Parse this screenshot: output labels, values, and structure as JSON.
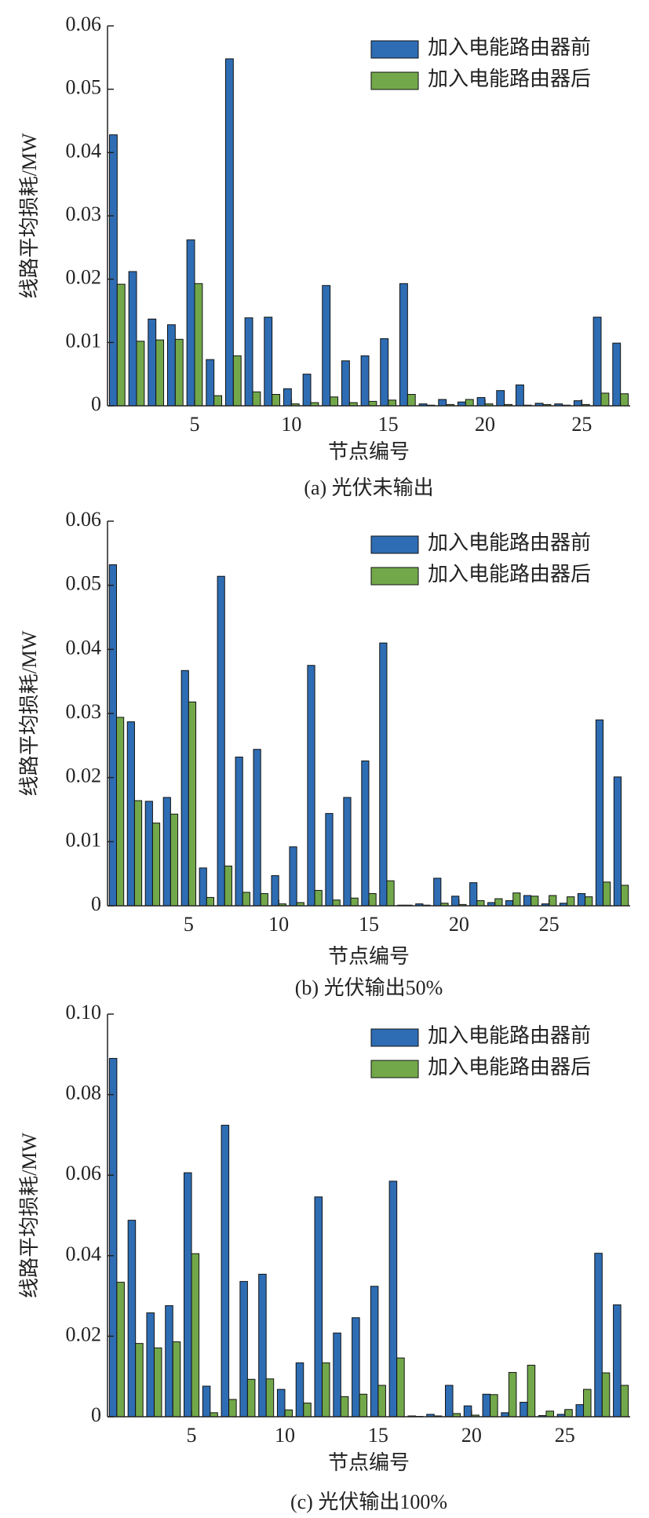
{
  "chart_data": [
    {
      "type": "bar",
      "caption": "(a) 光伏未输出",
      "xlabel": "节点编号",
      "ylabel": "线路平均损耗/MW",
      "legend": "upper right",
      "x": [
        1,
        2,
        3,
        4,
        5,
        6,
        7,
        8,
        9,
        10,
        11,
        12,
        13,
        14,
        15,
        16,
        17,
        18,
        19,
        20,
        21,
        22,
        23,
        24,
        25,
        26,
        27
      ],
      "xlim": [
        0.5,
        27.5
      ],
      "xticks": [
        5,
        10,
        15,
        20,
        25
      ],
      "ylim": [
        0,
        0.06
      ],
      "yticks": [
        0,
        0.01,
        0.02,
        0.03,
        0.04,
        0.05,
        0.06
      ],
      "series": [
        {
          "name": "加入电能路由器前",
          "color": "#2e6db4",
          "values": [
            0.0428,
            0.0212,
            0.0137,
            0.0128,
            0.0262,
            0.0073,
            0.0548,
            0.0139,
            0.014,
            0.0027,
            0.005,
            0.019,
            0.0071,
            0.0079,
            0.0106,
            0.0193,
            0.0003,
            0.001,
            0.0006,
            0.0013,
            0.0024,
            0.0033,
            0.0004,
            0.0003,
            0.0008,
            0.014,
            0.0099
          ]
        },
        {
          "name": "加入电能路由器后",
          "color": "#72a84a",
          "values": [
            0.0192,
            0.0102,
            0.0104,
            0.0105,
            0.0193,
            0.0016,
            0.0079,
            0.0022,
            0.0018,
            0.0003,
            0.0005,
            0.0014,
            0.0005,
            0.0007,
            0.0009,
            0.0018,
            0.0001,
            0.0002,
            0.001,
            0.0003,
            0.0002,
            0.0001,
            0.0002,
            0.0001,
            0.0002,
            0.002,
            0.0019
          ]
        }
      ]
    },
    {
      "type": "bar",
      "caption": "(b) 光伏输出50%",
      "xlabel": "节点编号",
      "ylabel": "线路平均损耗/MW",
      "legend": "upper right",
      "x": [
        1,
        2,
        3,
        4,
        5,
        6,
        7,
        8,
        9,
        10,
        11,
        12,
        13,
        14,
        15,
        16,
        17,
        18,
        19,
        20,
        21,
        22,
        23,
        24,
        25,
        26,
        27,
        28,
        29
      ],
      "xlim": [
        0.5,
        29.5
      ],
      "xticks": [
        5,
        10,
        15,
        20,
        25
      ],
      "ylim": [
        0,
        0.06
      ],
      "yticks": [
        0,
        0.01,
        0.02,
        0.03,
        0.04,
        0.05,
        0.06
      ],
      "series": [
        {
          "name": "加入电能路由器前",
          "color": "#2e6db4",
          "values": [
            0.0532,
            0.0287,
            0.0163,
            0.0169,
            0.0367,
            0.0059,
            0.0514,
            0.0232,
            0.0244,
            0.0047,
            0.0092,
            0.0375,
            0.0144,
            0.0169,
            0.0226,
            0.041,
            0.0001,
            0.0003,
            0.0043,
            0.0015,
            0.0036,
            0.0005,
            0.0008,
            0.0016,
            0.0003,
            0.0004,
            0.0019,
            0.029,
            0.0201
          ]
        },
        {
          "name": "加入电能路由器后",
          "color": "#72a84a",
          "values": [
            0.0294,
            0.0164,
            0.0129,
            0.0143,
            0.0318,
            0.0013,
            0.0062,
            0.0021,
            0.0019,
            0.0003,
            0.0005,
            0.0024,
            0.0009,
            0.0012,
            0.0019,
            0.0039,
            0.0001,
            0.0001,
            0.0004,
            0.0002,
            0.0008,
            0.0011,
            0.002,
            0.0015,
            0.0016,
            0.0014,
            0.0014,
            0.0037,
            0.0032
          ]
        }
      ]
    },
    {
      "type": "bar",
      "caption": "(c) 光伏输出100%",
      "xlabel": "节点编号",
      "ylabel": "线路平均损耗/MW",
      "legend": "upper right",
      "x": [
        1,
        2,
        3,
        4,
        5,
        6,
        7,
        8,
        9,
        10,
        11,
        12,
        13,
        14,
        15,
        16,
        17,
        18,
        19,
        20,
        21,
        22,
        23,
        24,
        25,
        26,
        27,
        28
      ],
      "xlim": [
        0.5,
        28.5
      ],
      "xticks": [
        5,
        10,
        15,
        20,
        25
      ],
      "ylim": [
        0,
        0.1
      ],
      "yticks": [
        0,
        0.02,
        0.04,
        0.06,
        0.08,
        {
          "value": 0.1,
          "label": "0.10"
        }
      ],
      "series": [
        {
          "name": "加入电能路由器前",
          "color": "#2e6db4",
          "values": [
            0.089,
            0.0488,
            0.0258,
            0.0276,
            0.0606,
            0.0076,
            0.0724,
            0.0336,
            0.0354,
            0.0068,
            0.0134,
            0.0546,
            0.0208,
            0.0246,
            0.0324,
            0.0585,
            0.0002,
            0.0006,
            0.0078,
            0.0027,
            0.0056,
            0.001,
            0.0036,
            0.0003,
            0.0006,
            0.003,
            0.0406,
            0.0278
          ]
        },
        {
          "name": "加入电能路由器后",
          "color": "#72a84a",
          "values": [
            0.0334,
            0.0182,
            0.0171,
            0.0186,
            0.0405,
            0.001,
            0.0043,
            0.0093,
            0.0094,
            0.0017,
            0.0034,
            0.0134,
            0.005,
            0.0056,
            0.0078,
            0.0146,
            0.0001,
            0.0002,
            0.0008,
            0.0004,
            0.0055,
            0.011,
            0.0128,
            0.0014,
            0.0018,
            0.0068,
            0.0109,
            0.0078
          ]
        }
      ]
    }
  ]
}
